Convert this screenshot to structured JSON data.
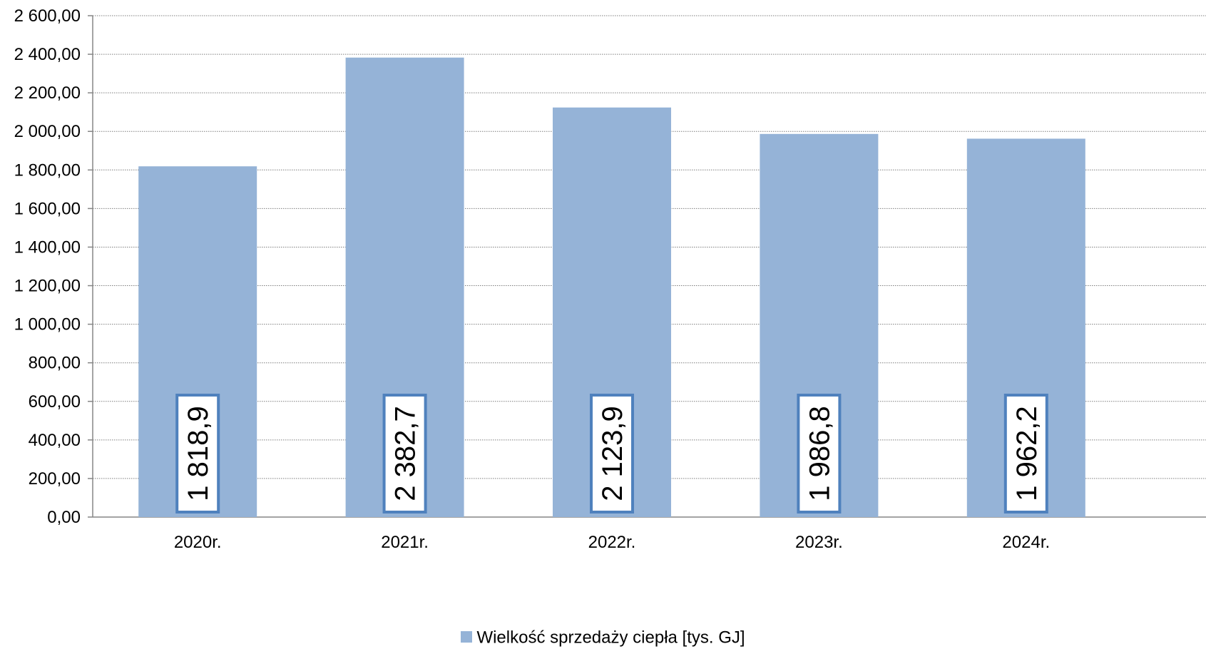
{
  "chart_data": {
    "type": "bar",
    "categories": [
      "2020r.",
      "2021r.",
      "2022r.",
      "2023r.",
      "2024r."
    ],
    "series": [
      {
        "name": "Wielkość sprzedaży ciepła [tys. GJ]",
        "values": [
          1818.9,
          2382.7,
          2123.9,
          1986.8,
          1962.2
        ],
        "data_labels": [
          "1 818,9",
          "2 382,7",
          "2 123,9",
          "1 986,8",
          "1 962,2"
        ],
        "color": "#95B3D7"
      }
    ],
    "ylim": [
      0,
      2600
    ],
    "yticks": [
      0,
      200,
      400,
      600,
      800,
      1000,
      1200,
      1400,
      1600,
      1800,
      2000,
      2200,
      2400,
      2600
    ],
    "ytick_labels": [
      "0,00",
      "200,00",
      "400,00",
      "600,00",
      "800,00",
      "1 000,00",
      "1 200,00",
      "1 400,00",
      "1 600,00",
      "1 800,00",
      "2 000,00",
      "2 200,00",
      "2 400,00",
      "2 600,00"
    ],
    "grid": true,
    "legend_position": "bottom",
    "label_box_border_color": "#4F81BD"
  }
}
